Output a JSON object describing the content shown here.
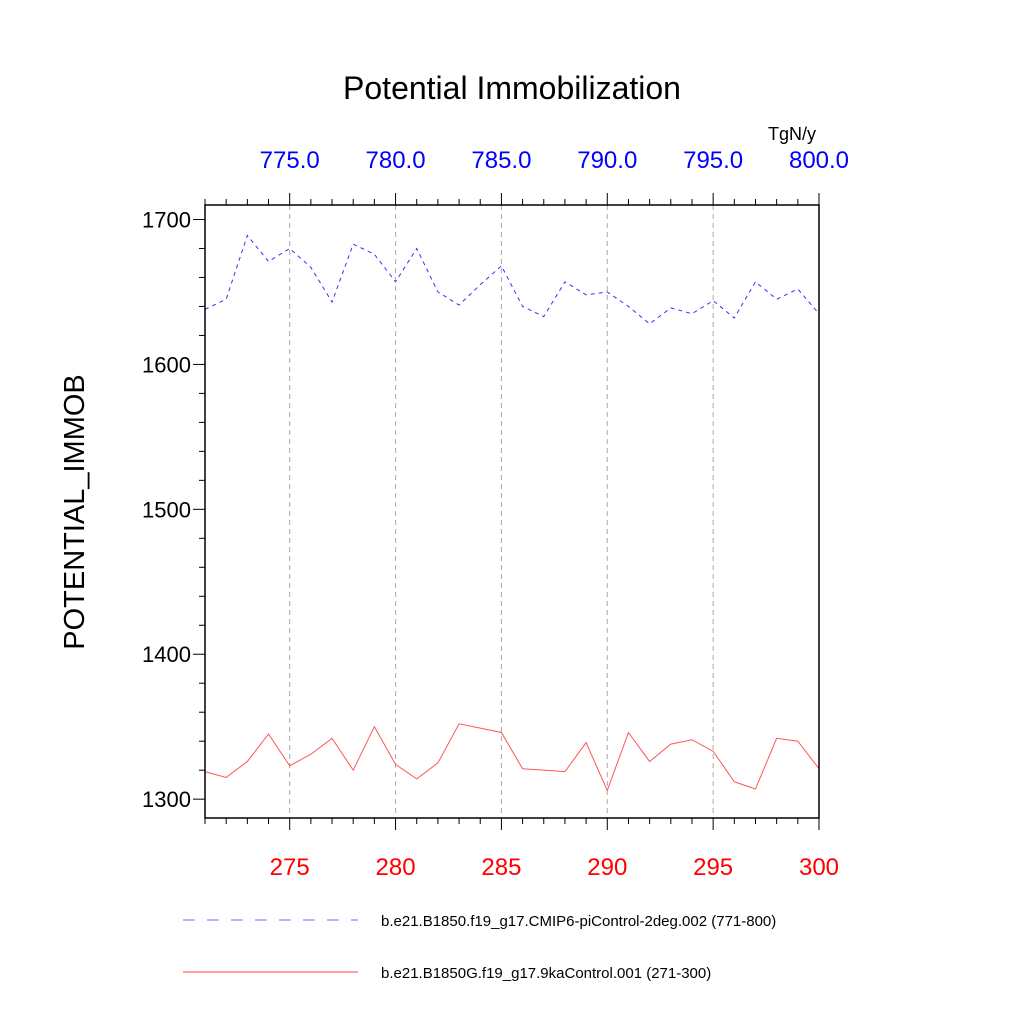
{
  "chart_data": {
    "type": "line",
    "title": "Potential Immobilization",
    "units": "TgN/y",
    "ylabel": "POTENTIAL_IMMOB",
    "ylim": [
      1287,
      1710
    ],
    "yticks": [
      1300,
      1400,
      1500,
      1600,
      1700
    ],
    "bottom_axis": {
      "range": [
        271,
        300
      ],
      "ticks": [
        275,
        280,
        285,
        290,
        295,
        300
      ],
      "tick_labels": [
        "275",
        "280",
        "285",
        "290",
        "295",
        "300"
      ],
      "color": "#ff0000"
    },
    "top_axis": {
      "range": [
        771,
        800
      ],
      "ticks": [
        775,
        780,
        785,
        790,
        795,
        800
      ],
      "tick_labels": [
        "775.0",
        "780.0",
        "785.0",
        "790.0",
        "795.0",
        "800.0"
      ],
      "color": "#0000ff"
    },
    "grid": "vertical dashed at major ticks",
    "legend_placement": "bottom",
    "series": [
      {
        "name": "b.e21.B1850.f19_g17.CMIP6-piControl-2deg.002 (771-800)",
        "color": "#0000ff",
        "style": "dashed",
        "x": [
          771,
          772,
          773,
          774,
          775,
          776,
          777,
          778,
          779,
          780,
          781,
          782,
          783,
          784,
          785,
          786,
          787,
          788,
          789,
          790,
          791,
          792,
          793,
          794,
          795,
          796,
          797,
          798,
          799,
          800
        ],
        "values": [
          1638,
          1645,
          1689,
          1671,
          1680,
          1667,
          1643,
          1683,
          1676,
          1657,
          1680,
          1650,
          1641,
          1655,
          1668,
          1640,
          1633,
          1657,
          1648,
          1650,
          1640,
          1628,
          1639,
          1635,
          1644,
          1632,
          1657,
          1645,
          1652,
          1635
        ]
      },
      {
        "name": "b.e21.B1850G.f19_g17.9kaControl.001 (271-300)",
        "color": "#ff0000",
        "style": "solid",
        "x": [
          271,
          272,
          273,
          274,
          275,
          276,
          277,
          278,
          279,
          280,
          281,
          282,
          283,
          284,
          285,
          286,
          287,
          288,
          289,
          290,
          291,
          292,
          293,
          294,
          295,
          296,
          297,
          298,
          299,
          300
        ],
        "values": [
          1319,
          1315,
          1326,
          1345,
          1323,
          1331,
          1342,
          1320,
          1350,
          1324,
          1314,
          1325,
          1352,
          1349,
          1346,
          1321,
          1320,
          1319,
          1339,
          1306,
          1346,
          1326,
          1338,
          1341,
          1333,
          1312,
          1307,
          1342,
          1340,
          1321
        ]
      }
    ]
  }
}
